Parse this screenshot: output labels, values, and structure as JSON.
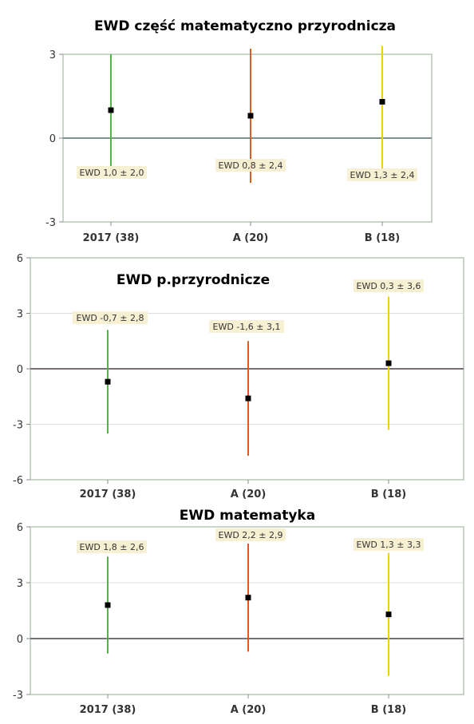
{
  "chart_data": [
    {
      "type": "errorbar",
      "title": "EWD część matematyczno przyrodnicza",
      "categories": [
        "2017 (38)",
        "A (20)",
        "B (18)"
      ],
      "values": [
        1.0,
        0.8,
        1.3
      ],
      "errors": [
        2.0,
        2.4,
        2.4
      ],
      "labels": [
        "EWD 1,0 ± 2,0",
        "EWD 0,8 ± 2,4",
        "EWD 1,3 ± 2,4"
      ],
      "colors": [
        "#4cba3c",
        "#e05a1a",
        "#f0d000"
      ],
      "ylim": [
        -3,
        3
      ],
      "yticks": [
        3,
        0,
        -3
      ],
      "ytick_labels": [
        "3",
        "0",
        "-3"
      ]
    },
    {
      "type": "errorbar",
      "title": "EWD p.przyrodnicze",
      "categories": [
        "2017 (38)",
        "A (20)",
        "B (18)"
      ],
      "values": [
        -0.7,
        -1.6,
        0.3
      ],
      "errors": [
        2.8,
        3.1,
        3.6
      ],
      "labels": [
        "EWD -0,7 ± 2,8",
        "EWD -1,6 ± 3,1",
        "EWD 0,3 ± 3,6"
      ],
      "colors": [
        "#4cba3c",
        "#e05a1a",
        "#f0d000"
      ],
      "ylim": [
        -6,
        6
      ],
      "yticks": [
        6,
        3,
        0,
        -3,
        -6
      ],
      "ytick_labels": [
        "6",
        "3",
        "0",
        "-3",
        "-6"
      ]
    },
    {
      "type": "errorbar",
      "title": "EWD matematyka",
      "categories": [
        "2017 (38)",
        "A (20)",
        "B (18)"
      ],
      "values": [
        1.8,
        2.2,
        1.3
      ],
      "errors": [
        2.6,
        2.9,
        3.3
      ],
      "labels": [
        "EWD 1,8 ± 2,6",
        "EWD 2,2 ± 2,9",
        "EWD 1,3 ± 3,3"
      ],
      "colors": [
        "#4cba3c",
        "#e05a1a",
        "#f0d000"
      ],
      "ylim": [
        -3,
        6
      ],
      "yticks": [
        6,
        3,
        0,
        -3
      ],
      "ytick_labels": [
        "6",
        "3",
        "0",
        "-3"
      ]
    }
  ]
}
